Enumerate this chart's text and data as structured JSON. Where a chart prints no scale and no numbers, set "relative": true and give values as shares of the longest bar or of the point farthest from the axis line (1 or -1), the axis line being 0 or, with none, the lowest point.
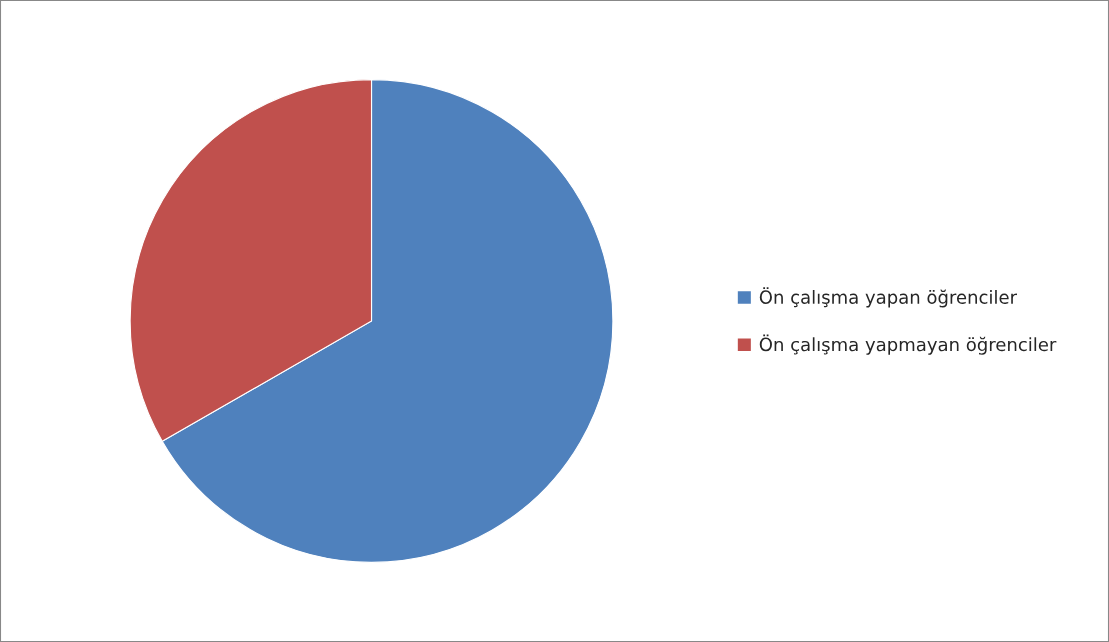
{
  "chart_data": {
    "type": "pie",
    "relative": true,
    "categories": [
      "Ön çalışma yapan öğrenciler",
      "Ön çalışma yapmayan öğrenciler"
    ],
    "values": [
      66.7,
      33.3
    ],
    "colors": [
      "#4f81bd",
      "#c0504d"
    ],
    "legend": "right"
  }
}
